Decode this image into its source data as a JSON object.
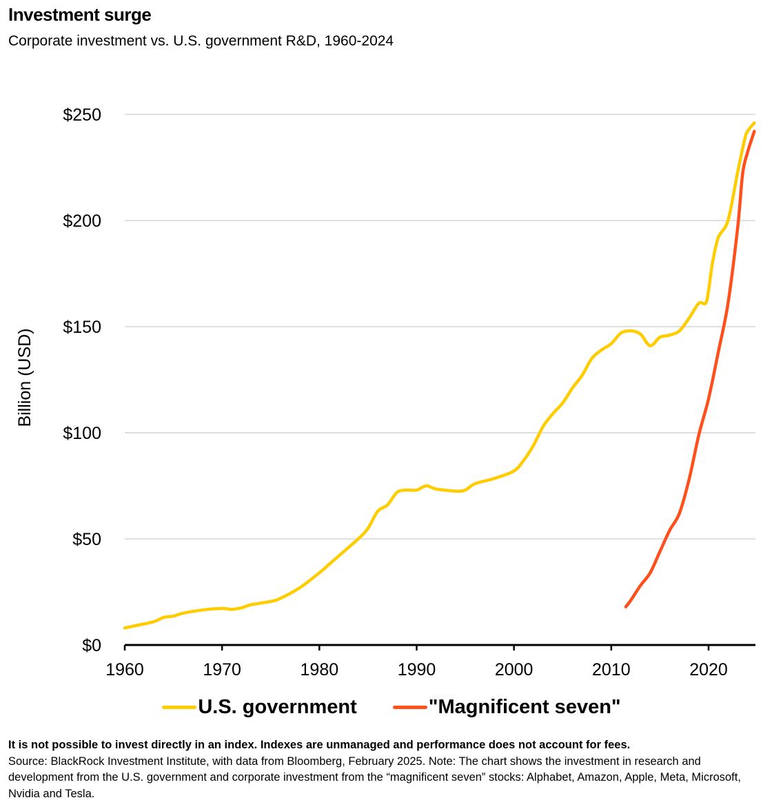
{
  "title": "Investment surge",
  "subtitle": "Corporate investment vs. U.S. government R&D, 1960-2024",
  "chart_data": {
    "type": "line",
    "title": "Investment surge",
    "subtitle": "Corporate investment vs. U.S. government R&D, 1960-2024",
    "xlabel": "",
    "ylabel": "Billion (USD)",
    "xlim": [
      1960,
      2024.8
    ],
    "ylim": [
      0,
      250
    ],
    "xticks": [
      1960,
      1970,
      1980,
      1990,
      2000,
      2010,
      2020
    ],
    "xtick_labels": [
      "1960",
      "1970",
      "1980",
      "1990",
      "2000",
      "2010",
      "2020"
    ],
    "yticks": [
      0,
      50,
      100,
      150,
      200,
      250
    ],
    "ytick_labels": [
      "$0",
      "$50",
      "$100",
      "$150",
      "$200",
      "$250"
    ],
    "grid": "horizontal",
    "legend_position": "bottom-center",
    "series": [
      {
        "name": "U.S. government",
        "color": "#FFCC00",
        "x": [
          1960,
          1961,
          1963,
          1964,
          1965,
          1966,
          1968,
          1970,
          1971,
          1972,
          1973,
          1975,
          1976,
          1978,
          1980,
          1981,
          1982,
          1984,
          1985,
          1986,
          1987,
          1988,
          1989,
          1990,
          1991,
          1992,
          1994,
          1995,
          1996,
          1998,
          2000,
          2001,
          2002,
          2003,
          2004,
          2005,
          2006,
          2007,
          2008,
          2009,
          2010,
          2011,
          2012,
          2013,
          2014,
          2015,
          2016,
          2017,
          2018,
          2019,
          2019.7,
          2020,
          2020.4,
          2021,
          2022,
          2023,
          2023.7,
          2024,
          2024.7
        ],
        "y": [
          8,
          9,
          11,
          13,
          13.6,
          15,
          16.5,
          17.2,
          16.8,
          17.5,
          19,
          20.5,
          22,
          27,
          34,
          38,
          42,
          50,
          55,
          63,
          66,
          72,
          73,
          73,
          75,
          73.5,
          72.5,
          73,
          76,
          78.5,
          82,
          87,
          94,
          103,
          109,
          114,
          121,
          127,
          135,
          139,
          142,
          147,
          148,
          146.5,
          141,
          145,
          146,
          148,
          154,
          161,
          161,
          167,
          180,
          192,
          200,
          223,
          238,
          242,
          246
        ]
      },
      {
        "name": "\"Magnificent seven\"",
        "color": "#FF4F1A",
        "x": [
          2011.5,
          2012,
          2013,
          2014,
          2015,
          2016,
          2017,
          2018,
          2019,
          2020,
          2021,
          2022,
          2023,
          2023.5,
          2024,
          2024.7
        ],
        "y": [
          18,
          21,
          28,
          34,
          44,
          54,
          62,
          78,
          99,
          116,
          138,
          161,
          197,
          222,
          232,
          242
        ]
      }
    ]
  },
  "legend": [
    "U.S. government",
    "\"Magnificent seven\""
  ],
  "notes": {
    "disclaimer": "It is not possible to invest directly in an index. Indexes are unmanaged and performance does not account for fees.",
    "source": "Source: BlackRock Investment Institute, with data from Bloomberg, February 2025. Note: The chart shows the investment in research and development from the U.S. government and corporate investment from the “magnificent seven” stocks: Alphabet, Amazon, Apple, Meta, Microsoft, Nvidia and Tesla."
  }
}
